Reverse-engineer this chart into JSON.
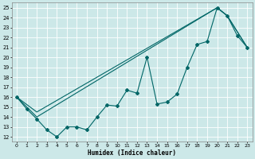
{
  "xlabel": "Humidex (Indice chaleur)",
  "bg_color": "#cce8e8",
  "grid_color": "#ffffff",
  "line_color": "#006666",
  "xlim": [
    -0.5,
    23.5
  ],
  "ylim": [
    11.5,
    25.5
  ],
  "xticks": [
    0,
    1,
    2,
    3,
    4,
    5,
    6,
    7,
    8,
    9,
    10,
    11,
    12,
    13,
    14,
    15,
    16,
    17,
    18,
    19,
    20,
    21,
    22,
    23
  ],
  "yticks": [
    12,
    13,
    14,
    15,
    16,
    17,
    18,
    19,
    20,
    21,
    22,
    23,
    24,
    25
  ],
  "line1_x": [
    0,
    1,
    2,
    3,
    4,
    5,
    6,
    7,
    8,
    9,
    10,
    11,
    12,
    13,
    14,
    15,
    16,
    17,
    18,
    19,
    20,
    21,
    22,
    23
  ],
  "line1_y": [
    16,
    14.8,
    13.8,
    12.7,
    12.0,
    13.0,
    13.0,
    12.7,
    14.0,
    15.2,
    15.1,
    16.7,
    16.4,
    20.0,
    15.3,
    15.5,
    16.3,
    19.0,
    21.3,
    21.6,
    25.0,
    24.2,
    22.2,
    21.0
  ],
  "line2_x": [
    0,
    2,
    20,
    21,
    23
  ],
  "line2_y": [
    16,
    14.0,
    25.0,
    24.2,
    21.0
  ],
  "line3_x": [
    0,
    2,
    20,
    21,
    23
  ],
  "line3_y": [
    16,
    14.5,
    25.0,
    24.2,
    21.0
  ]
}
